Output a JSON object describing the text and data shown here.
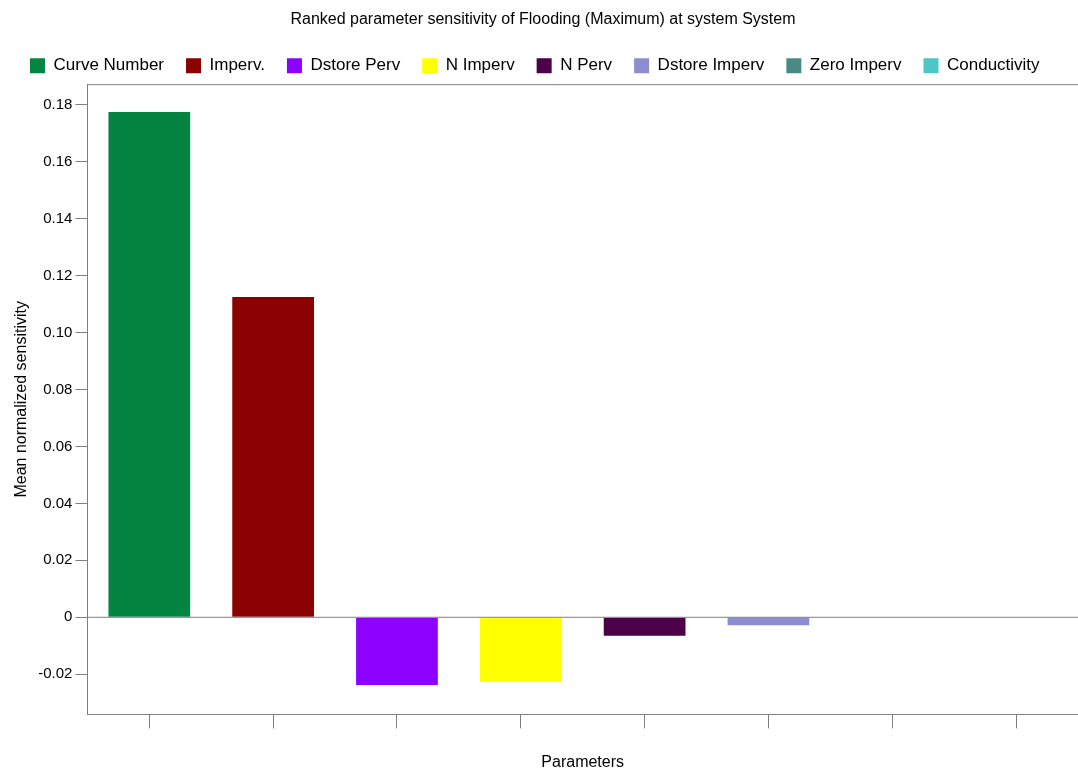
{
  "chart_data": {
    "type": "bar",
    "title": "Ranked parameter sensitivity of Flooding (Maximum) at system System",
    "xlabel": "Parameters",
    "ylabel": "Mean normalized sensitivity",
    "categories": [
      null,
      null,
      null,
      null,
      null,
      null,
      null,
      null
    ],
    "series": [
      {
        "name": "Curve Number",
        "color": "#038541",
        "values": [
          0.1774,
          null,
          null,
          null,
          null,
          null,
          null,
          null
        ]
      },
      {
        "name": "Imperv.",
        "color": "#8b0000",
        "values": [
          null,
          0.1125,
          null,
          null,
          null,
          null,
          null,
          null
        ]
      },
      {
        "name": "Dstore Perv",
        "color": "#8b00ff",
        "values": [
          null,
          null,
          -0.0238,
          null,
          null,
          null,
          null,
          null
        ]
      },
      {
        "name": "N Imperv",
        "color": "#ffff00",
        "values": [
          null,
          null,
          null,
          -0.0227,
          null,
          null,
          null,
          null
        ]
      },
      {
        "name": "N Perv",
        "color": "#4b0048",
        "values": [
          null,
          null,
          null,
          null,
          -0.0065,
          null,
          null,
          null
        ]
      },
      {
        "name": "Dstore Imperv",
        "color": "#8c8cd0",
        "values": [
          null,
          null,
          null,
          null,
          null,
          -0.0028,
          null,
          null
        ]
      },
      {
        "name": "Zero Imperv",
        "color": "#4a8a85",
        "values": [
          null,
          null,
          null,
          null,
          null,
          null,
          0,
          null
        ]
      },
      {
        "name": "Conductivity",
        "color": "#4cc6c6",
        "values": [
          null,
          null,
          null,
          null,
          null,
          null,
          null,
          0
        ]
      }
    ],
    "ylim": [
      -0.0341,
      0.1872
    ],
    "yticks": [
      -0.02,
      0,
      0.02,
      0.04,
      0.06,
      0.08,
      {
        "value": 0.1,
        "label": "0.10"
      },
      0.12,
      0.14,
      0.16,
      0.18
    ],
    "ref_lines": [
      {
        "axis": "y",
        "value": 0,
        "color": "#808080"
      }
    ],
    "grid": false,
    "legend": "top"
  }
}
